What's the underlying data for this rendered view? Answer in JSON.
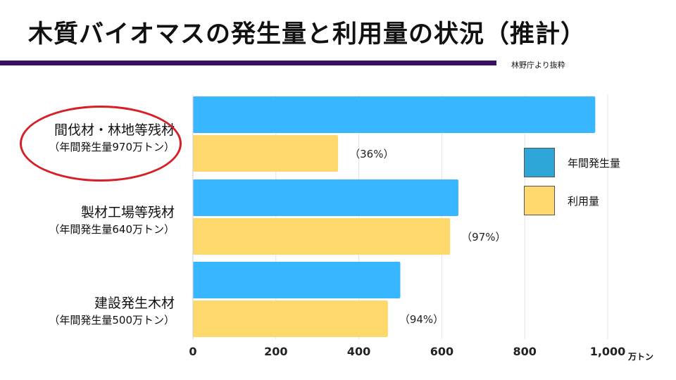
{
  "slide": {
    "title": "木質バイオマスの発生量と利用量の状況（推計）",
    "source": "林野庁より抜粋",
    "colors": {
      "title_rule": "#3a1160",
      "highlight_oval": "#d61f26"
    }
  },
  "legend": [
    {
      "label": "年間発生量",
      "color": "#2ea6d8"
    },
    {
      "label": "利用量",
      "color": "#fcd96a"
    }
  ],
  "chart_data": {
    "type": "bar",
    "orientation": "horizontal",
    "categories": [
      "間伐材・林地等残材",
      "製材工場等残材",
      "建設発生木材"
    ],
    "category_sublabels": [
      "（年間発生量970万トン）",
      "（年間発生量640万トン）",
      "（年間発生量500万トン）"
    ],
    "series": [
      {
        "name": "年間発生量",
        "values": [
          970,
          640,
          500
        ],
        "color": "#38b6ff"
      },
      {
        "name": "利用量",
        "values": [
          350,
          620,
          470
        ],
        "color": "#fcd96a"
      }
    ],
    "data_labels": [
      "（36%）",
      "（97%）",
      "（94%）"
    ],
    "xlim": [
      0,
      1000
    ],
    "xticks": [
      0,
      200,
      400,
      600,
      800,
      1000
    ],
    "xtick_labels": [
      "0",
      "200",
      "400",
      "600",
      "800",
      "1,000"
    ],
    "xunit": "万トン",
    "grid": true,
    "legend_position": "right"
  }
}
